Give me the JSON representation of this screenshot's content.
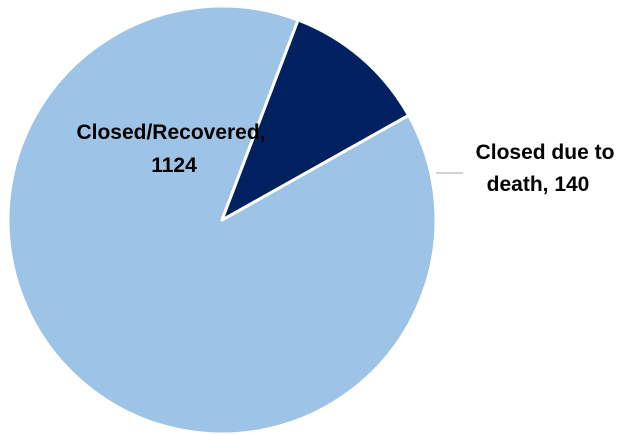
{
  "chart_data": {
    "type": "pie",
    "title": "",
    "slices": [
      {
        "label_lines": [
          "Closed/Recovered,",
          "1124"
        ],
        "label": "Closed/Recovered",
        "value": 1124,
        "color": "#9dc3e6"
      },
      {
        "label_lines": [
          "Closed due to",
          "death, 140"
        ],
        "label": "Closed due to death",
        "value": 140,
        "color": "#002060"
      }
    ],
    "start_angle_deg": -29.3,
    "border_color": "#ffffff",
    "leader_line_color": "#a6a6a6"
  }
}
